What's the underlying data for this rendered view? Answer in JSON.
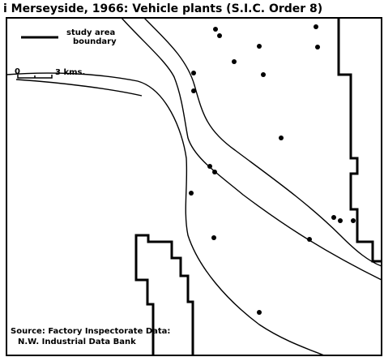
{
  "title": "i Merseyside, 1966: Vehicle plants (S.I.C. Order 8)",
  "legend": {
    "label_line1": "study area",
    "label_line2": "boundary"
  },
  "scale": {
    "start": "0",
    "end": "3 kms."
  },
  "source": {
    "line1": "Source: Factory Inspectorate Data:",
    "line2": "N.W. Industrial Data Bank"
  }
}
